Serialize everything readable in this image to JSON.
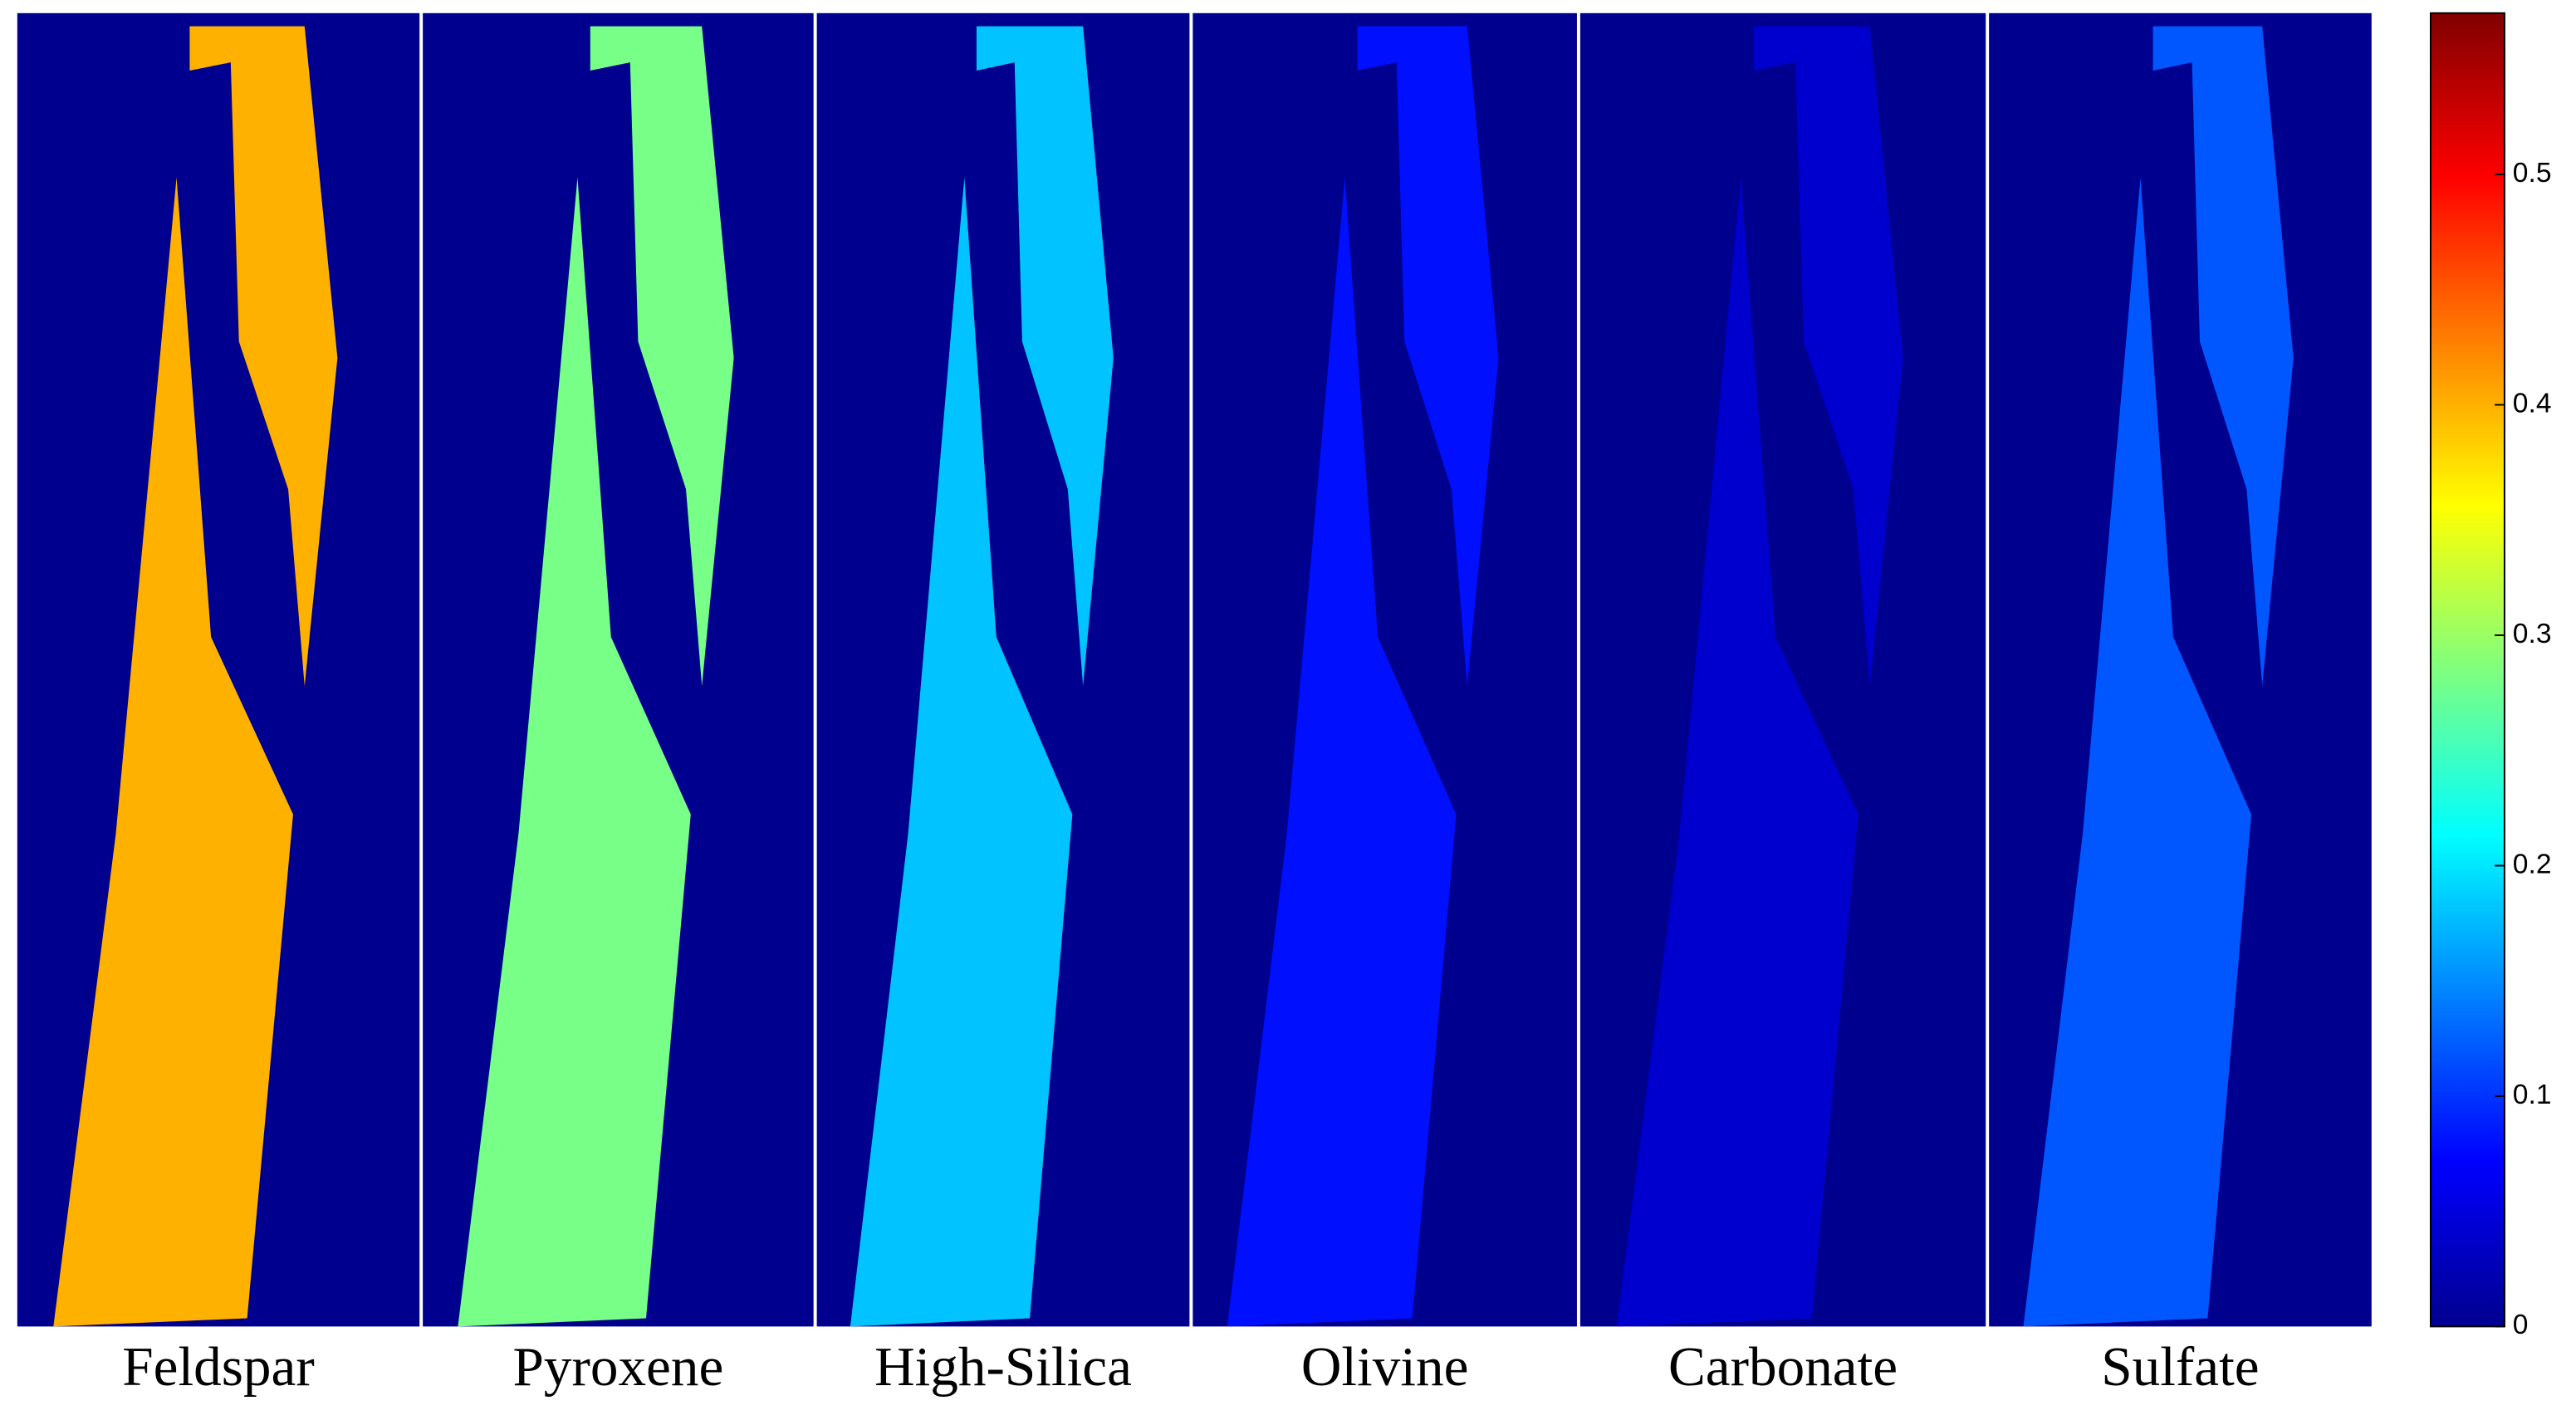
{
  "chart_data": {
    "type": "heatmap",
    "categories": [
      "Feldspar",
      "Pyroxene",
      "High-Silica",
      "Olivine",
      "Carbonate",
      "Sulfate"
    ],
    "values": [
      0.4,
      0.28,
      0.18,
      0.08,
      0.04,
      0.12
    ],
    "colormap": "jet",
    "clim": [
      0,
      0.57
    ],
    "cticks": [
      0,
      0.1,
      0.2,
      0.3,
      0.4,
      0.5
    ]
  }
}
